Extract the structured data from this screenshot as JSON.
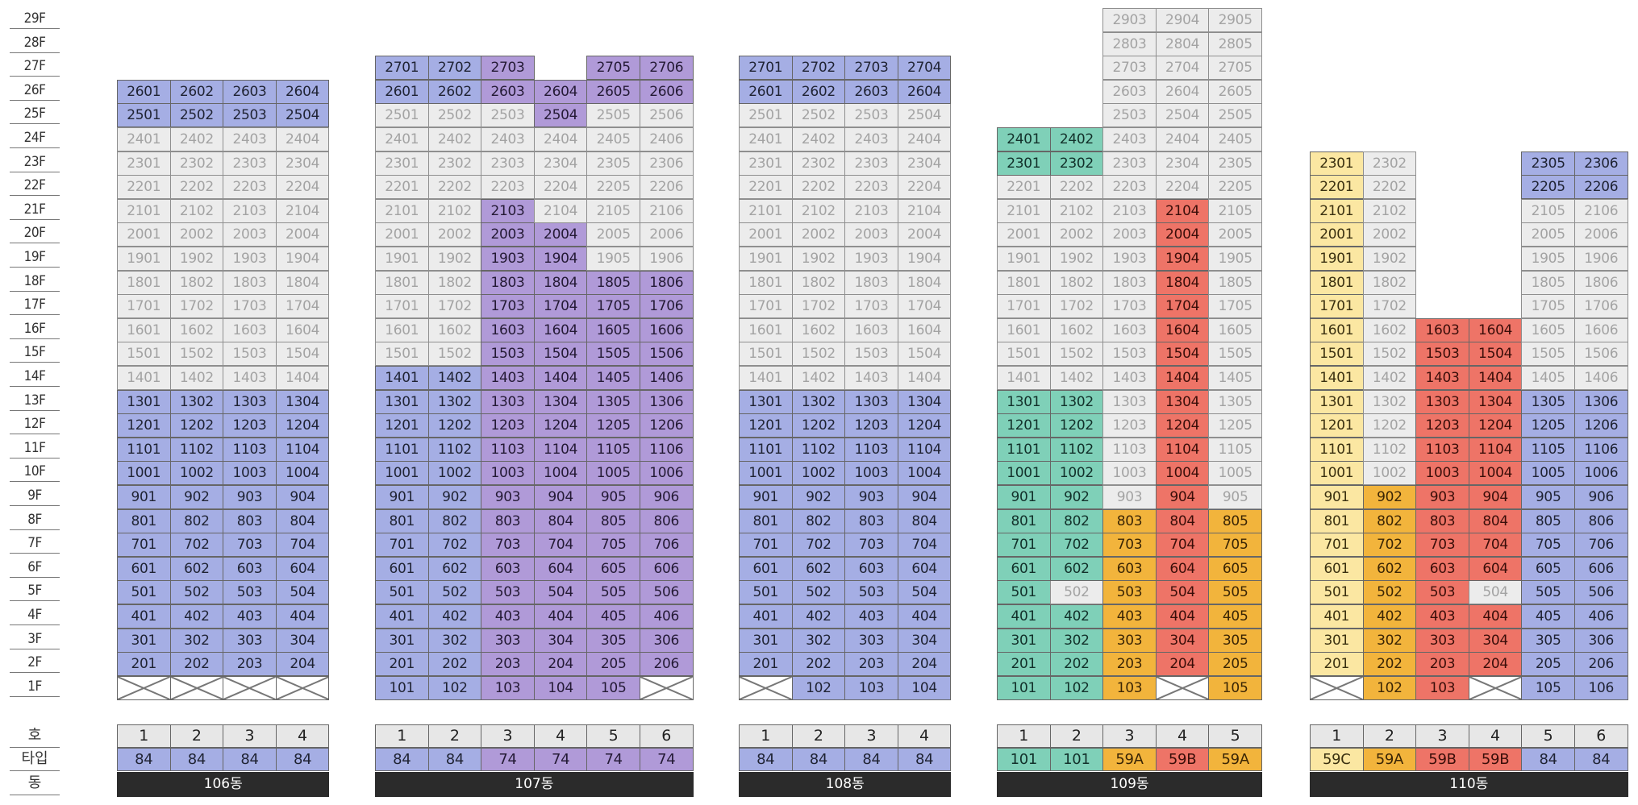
{
  "floor_labels": [
    "29F",
    "28F",
    "27F",
    "26F",
    "25F",
    "24F",
    "23F",
    "22F",
    "21F",
    "20F",
    "19F",
    "18F",
    "17F",
    "16F",
    "15F",
    "14F",
    "13F",
    "12F",
    "11F",
    "10F",
    "9F",
    "8F",
    "7F",
    "6F",
    "5F",
    "4F",
    "3F",
    "2F",
    "1F"
  ],
  "row_labels": {
    "ho": "호",
    "type": "타입",
    "dong": "동"
  },
  "colors": {
    "blue": "#a5aee4",
    "purple": "#b09ad8",
    "gray": "#ececec",
    "green": "#7fd0b8",
    "orange": "#f2b43c",
    "red": "#ee7467",
    "yellow": "#fbe7a2",
    "dong_bar": "#2b2b2b"
  },
  "legend_codes": {
    "B": "blue",
    "P": "purple",
    "G": "gray",
    "T": "green",
    "O": "orange",
    "R": "red",
    "Y": "yellow",
    "X": "empty (crossed)",
    "-": "no unit"
  },
  "buildings": [
    {
      "name": "106동",
      "lines": [
        "1",
        "2",
        "3",
        "4"
      ],
      "types": [
        "84",
        "84",
        "84",
        "84"
      ],
      "type_colors": [
        "B",
        "B",
        "B",
        "B"
      ],
      "floors": {
        "26": "BBBB",
        "25": "BBBB",
        "24": "GGGG",
        "23": "GGGG",
        "22": "GGGG",
        "21": "GGGG",
        "20": "GGGG",
        "19": "GGGG",
        "18": "GGGG",
        "17": "GGGG",
        "16": "GGGG",
        "15": "GGGG",
        "14": "GGGG",
        "13": "BBBB",
        "12": "BBBB",
        "11": "BBBB",
        "10": "BBBB",
        "9": "BBBB",
        "8": "BBBB",
        "7": "BBBB",
        "6": "BBBB",
        "5": "BBBB",
        "4": "BBBB",
        "3": "BBBB",
        "2": "BBBB",
        "1": "XXXX"
      }
    },
    {
      "name": "107동",
      "lines": [
        "1",
        "2",
        "3",
        "4",
        "5",
        "6"
      ],
      "types": [
        "84",
        "84",
        "74",
        "74",
        "74",
        "74"
      ],
      "type_colors": [
        "B",
        "B",
        "P",
        "P",
        "P",
        "P"
      ],
      "floors": {
        "27": "BBP-PP",
        "26": "BBPPPP",
        "25": "GGGPGG",
        "24": "GGGGGG",
        "23": "GGGGGG",
        "22": "GGGGGG",
        "21": "GGPGGG",
        "20": "GGPPGG",
        "19": "GGPPGG",
        "18": "GGPPPP",
        "17": "GGPPPP",
        "16": "GGPPPP",
        "15": "GGPPPP",
        "14": "BBPPPP",
        "13": "BBPPPP",
        "12": "BBPPPP",
        "11": "BBPPPP",
        "10": "BBPPPP",
        "9": "BBPPPP",
        "8": "BBPPPP",
        "7": "BBPPPP",
        "6": "BBPPPP",
        "5": "BBPPPP",
        "4": "BBPPPP",
        "3": "BBPPPP",
        "2": "BBPPPP",
        "1": "BBPPPX"
      }
    },
    {
      "name": "108동",
      "lines": [
        "1",
        "2",
        "3",
        "4"
      ],
      "types": [
        "84",
        "84",
        "84",
        "84"
      ],
      "type_colors": [
        "B",
        "B",
        "B",
        "B"
      ],
      "floors": {
        "27": "BBBB",
        "26": "BBBB",
        "25": "GGGG",
        "24": "GGGG",
        "23": "GGGG",
        "22": "GGGG",
        "21": "GGGG",
        "20": "GGGG",
        "19": "GGGG",
        "18": "GGGG",
        "17": "GGGG",
        "16": "GGGG",
        "15": "GGGG",
        "14": "GGGG",
        "13": "BBBB",
        "12": "BBBB",
        "11": "BBBB",
        "10": "BBBB",
        "9": "BBBB",
        "8": "BBBB",
        "7": "BBBB",
        "6": "BBBB",
        "5": "BBBB",
        "4": "BBBB",
        "3": "BBBB",
        "2": "BBBB",
        "1": "XBBB"
      }
    },
    {
      "name": "109동",
      "lines": [
        "1",
        "2",
        "3",
        "4",
        "5"
      ],
      "types": [
        "101",
        "101",
        "59A",
        "59B",
        "59A"
      ],
      "type_colors": [
        "T",
        "T",
        "O",
        "R",
        "O"
      ],
      "floors": {
        "29": "--GGG",
        "28": "--GGG",
        "27": "--GGG",
        "26": "--GGG",
        "25": "--GGG",
        "24": "TTGGG",
        "23": "TTGGG",
        "22": "GGGGG",
        "21": "GGGRG",
        "20": "GGGRG",
        "19": "GGGRG",
        "18": "GGGRG",
        "17": "GGGRG",
        "16": "GGGRG",
        "15": "GGGRG",
        "14": "GGGRG",
        "13": "TTGRG",
        "12": "TTGRG",
        "11": "TTGRG",
        "10": "TTGRG",
        "9": "TTGRG",
        "8": "TTORO",
        "7": "TTORO",
        "6": "TTORO",
        "5": "TGORO",
        "4": "TTORO",
        "3": "TTORO",
        "2": "TTORO",
        "1": "TTOXO"
      }
    },
    {
      "name": "110동",
      "lines": [
        "1",
        "2",
        "3",
        "4",
        "5",
        "6"
      ],
      "types": [
        "59C",
        "59A",
        "59B",
        "59B",
        "84",
        "84"
      ],
      "type_colors": [
        "Y",
        "O",
        "R",
        "R",
        "B",
        "B"
      ],
      "floors": {
        "23": "YG--BB",
        "22": "YG--BB",
        "21": "YG--GG",
        "20": "YG--GG",
        "19": "YG--GG",
        "18": "YG--GG",
        "17": "YG--GG",
        "16": "YGRRGG",
        "15": "YGRRGG",
        "14": "YGRRGG",
        "13": "YGRRBB",
        "12": "YGRRBB",
        "11": "YGRRBB",
        "10": "YGRRBB",
        "9": "YORRBB",
        "8": "YORRBB",
        "7": "YORRBB",
        "6": "YORRBB",
        "5": "YORGBB",
        "4": "YORRBB",
        "3": "YORRBB",
        "2": "YORRBB",
        "1": "XORXBB"
      }
    }
  ]
}
